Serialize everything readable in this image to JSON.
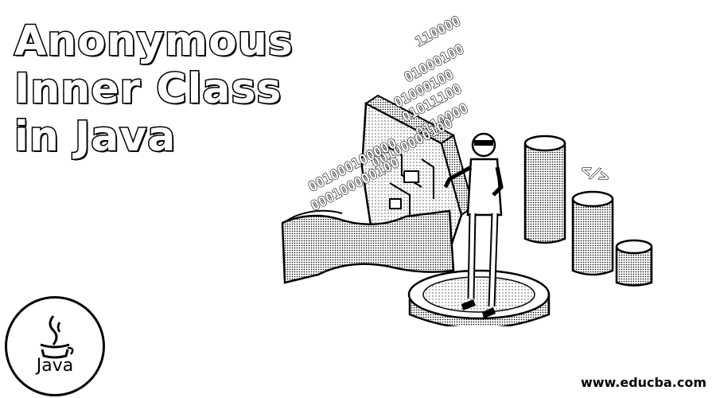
{
  "title": {
    "line1": "Anonymous",
    "line2": "Inner Class",
    "line3": "in Java"
  },
  "binary_rows": [
    "110000",
    "01000100",
    "01000100",
    "01011100",
    "0110000",
    "00100000100",
    "001000100000",
    "000100000100"
  ],
  "code_tag": "</>",
  "logo": {
    "label": "Java",
    "icon": "java-cup-icon"
  },
  "footer": {
    "url": "www.educba.com"
  }
}
